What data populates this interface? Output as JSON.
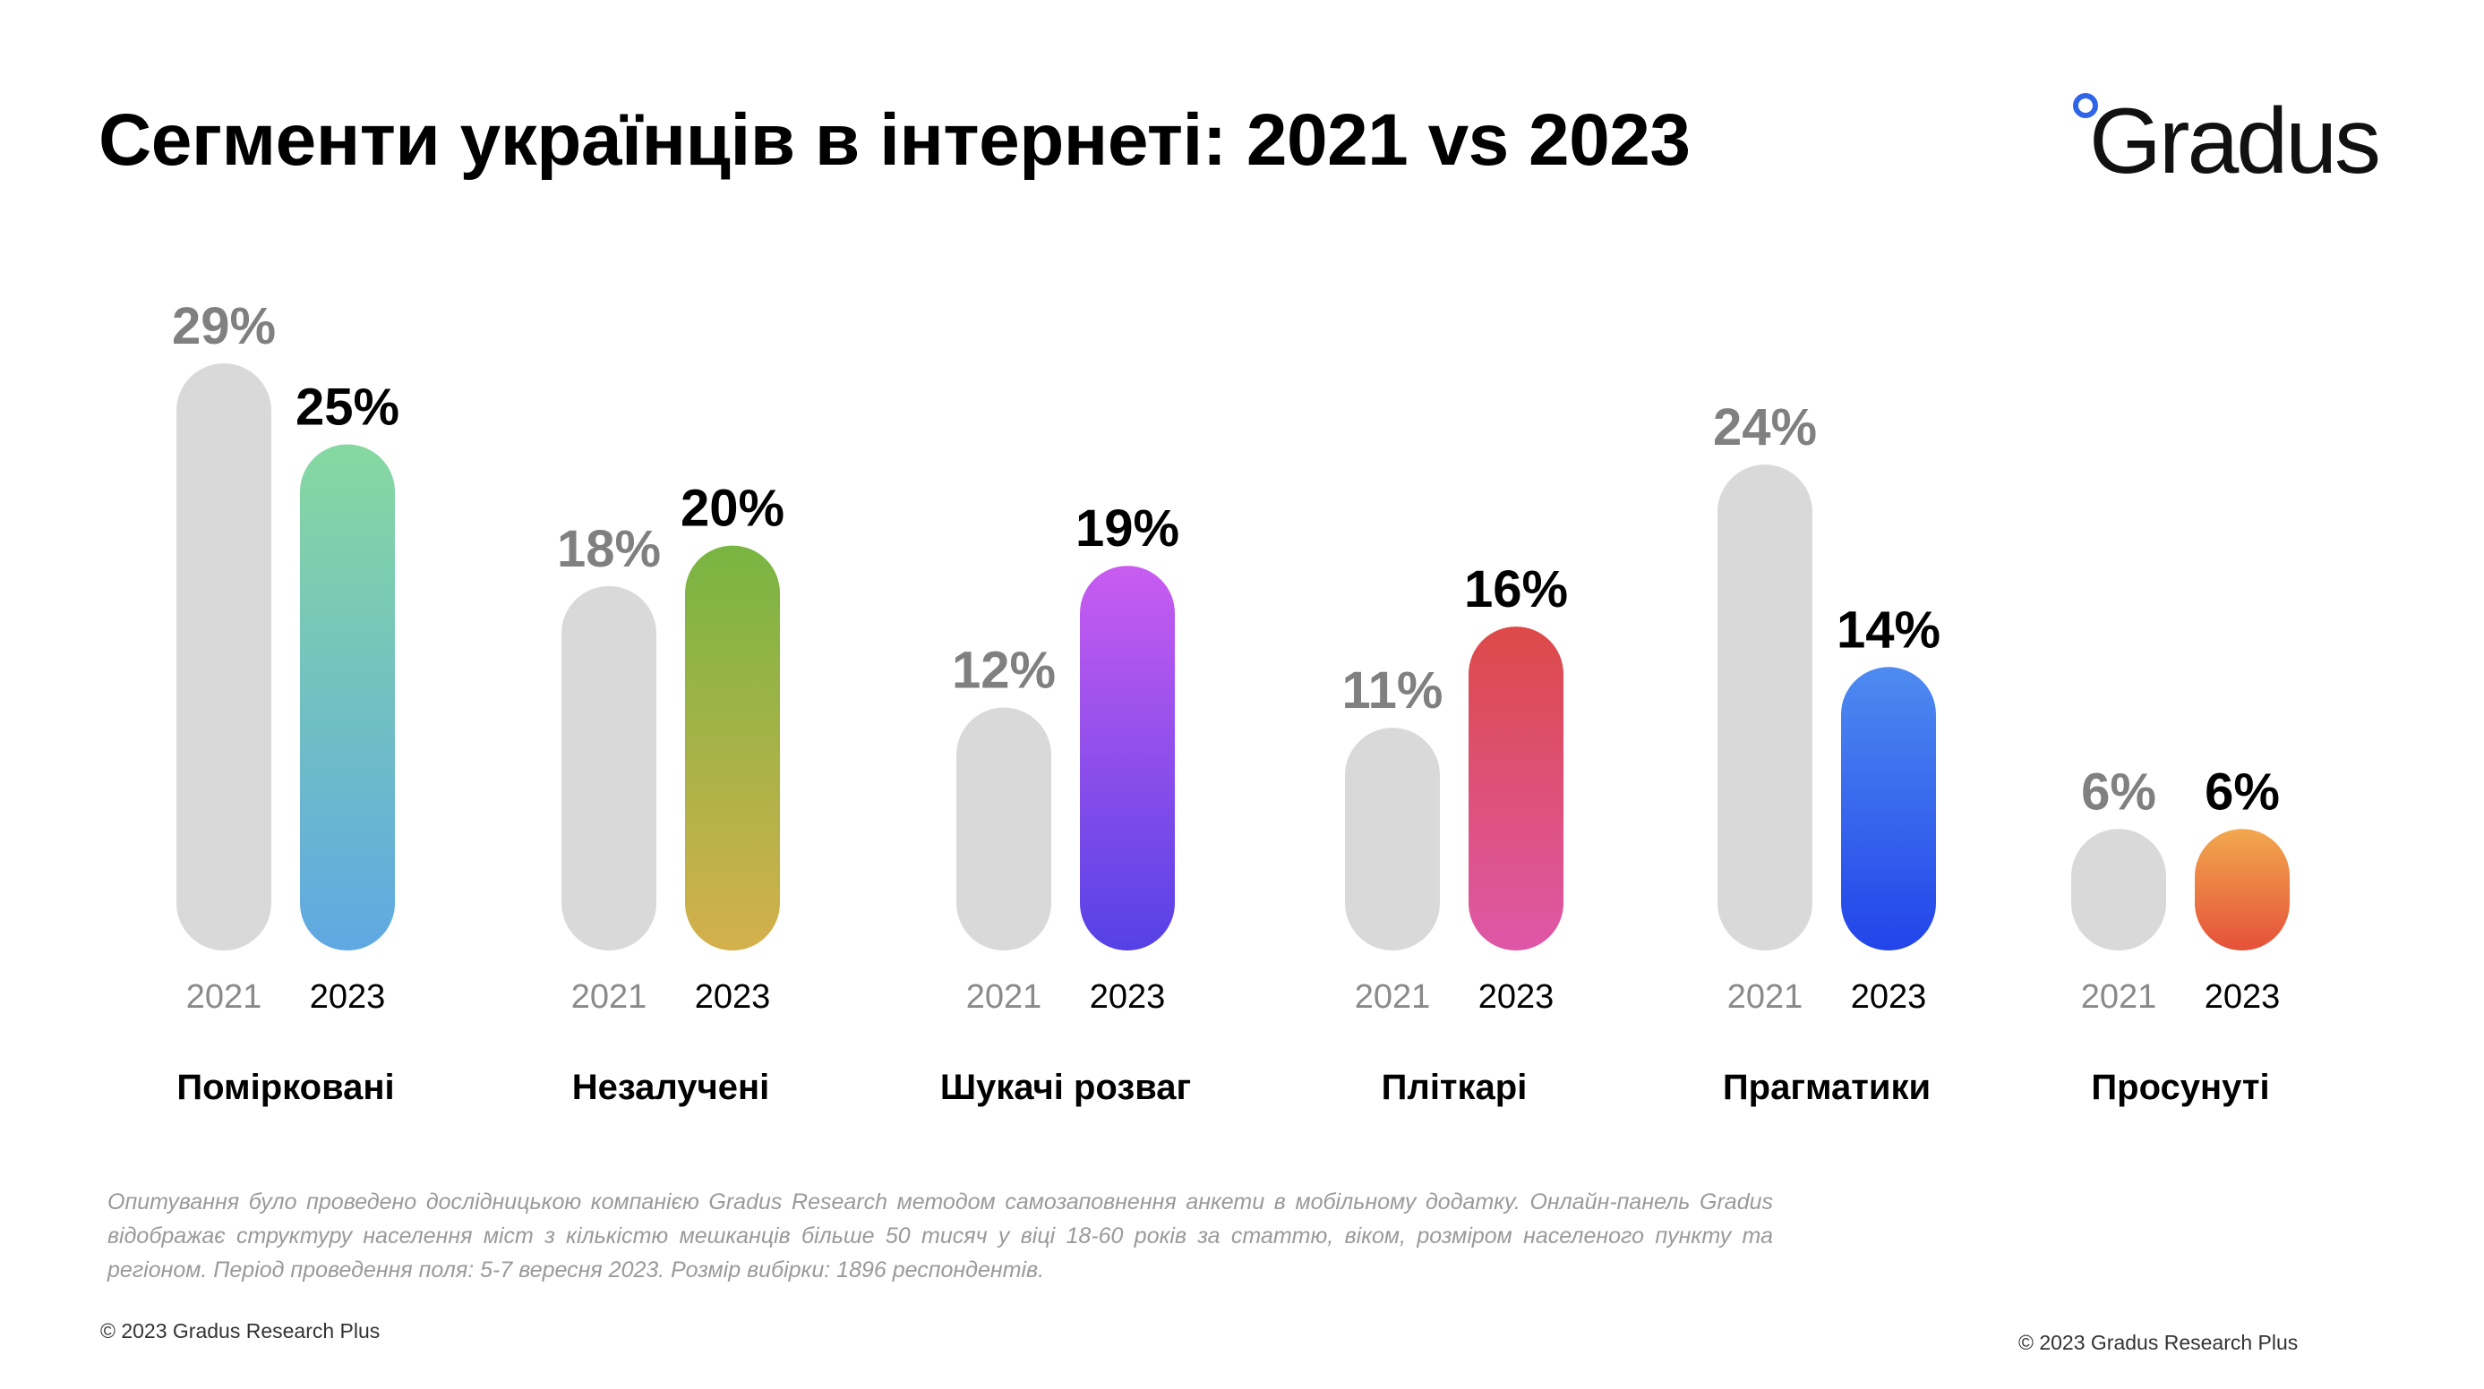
{
  "title": "Сегменти українців в інтернеті: 2021 vs 2023",
  "logo": {
    "text": "Gradus",
    "accent_color": "#2f66e8"
  },
  "chart_data": {
    "type": "bar",
    "title": "Сегменти українців в інтернеті: 2021 vs 2023",
    "xlabel": "",
    "ylabel": "",
    "ylim": [
      0,
      29
    ],
    "grid": false,
    "categories": [
      "Помірковані",
      "Незалучені",
      "Шукачі розваг",
      "Пліткарі",
      "Прагматики",
      "Просунуті"
    ],
    "series": [
      {
        "name": "2021",
        "values": [
          29,
          18,
          12,
          11,
          24,
          6
        ],
        "labels": [
          "29%",
          "18%",
          "12%",
          "11%",
          "24%",
          "6%"
        ],
        "color": "#d9d9d9"
      },
      {
        "name": "2023",
        "values": [
          25,
          20,
          19,
          16,
          14,
          6
        ],
        "labels": [
          "25%",
          "20%",
          "19%",
          "16%",
          "14%",
          "6%"
        ]
      }
    ],
    "gradients_2023": [
      [
        "#86d9a0",
        "#5fa8e3"
      ],
      [
        "#78b542",
        "#d4b04c"
      ],
      [
        "#c95cf0",
        "#5541e6"
      ],
      [
        "#dd4a48",
        "#de57a8"
      ],
      [
        "#4e8bf0",
        "#2244ea"
      ],
      [
        "#f2a84e",
        "#e5513a"
      ]
    ]
  },
  "footnote": "Опитування було проведено дослідницькою компанією Gradus Research методом самозаповнення анкети в мобільному додатку. Онлайн-панель Gradus відображає структуру населення міст з кількістю мешканців більше 50 тисяч у віці 18-60 років за статтю, віком, розміром населеного пункту та регіоном. Період проведення поля: 5-7 вересня 2023. Розмір вибірки: 1896 респондентів.",
  "copyright_left": "© 2023 Gradus Research Plus",
  "copyright_right": "© 2023 Gradus Research Plus"
}
